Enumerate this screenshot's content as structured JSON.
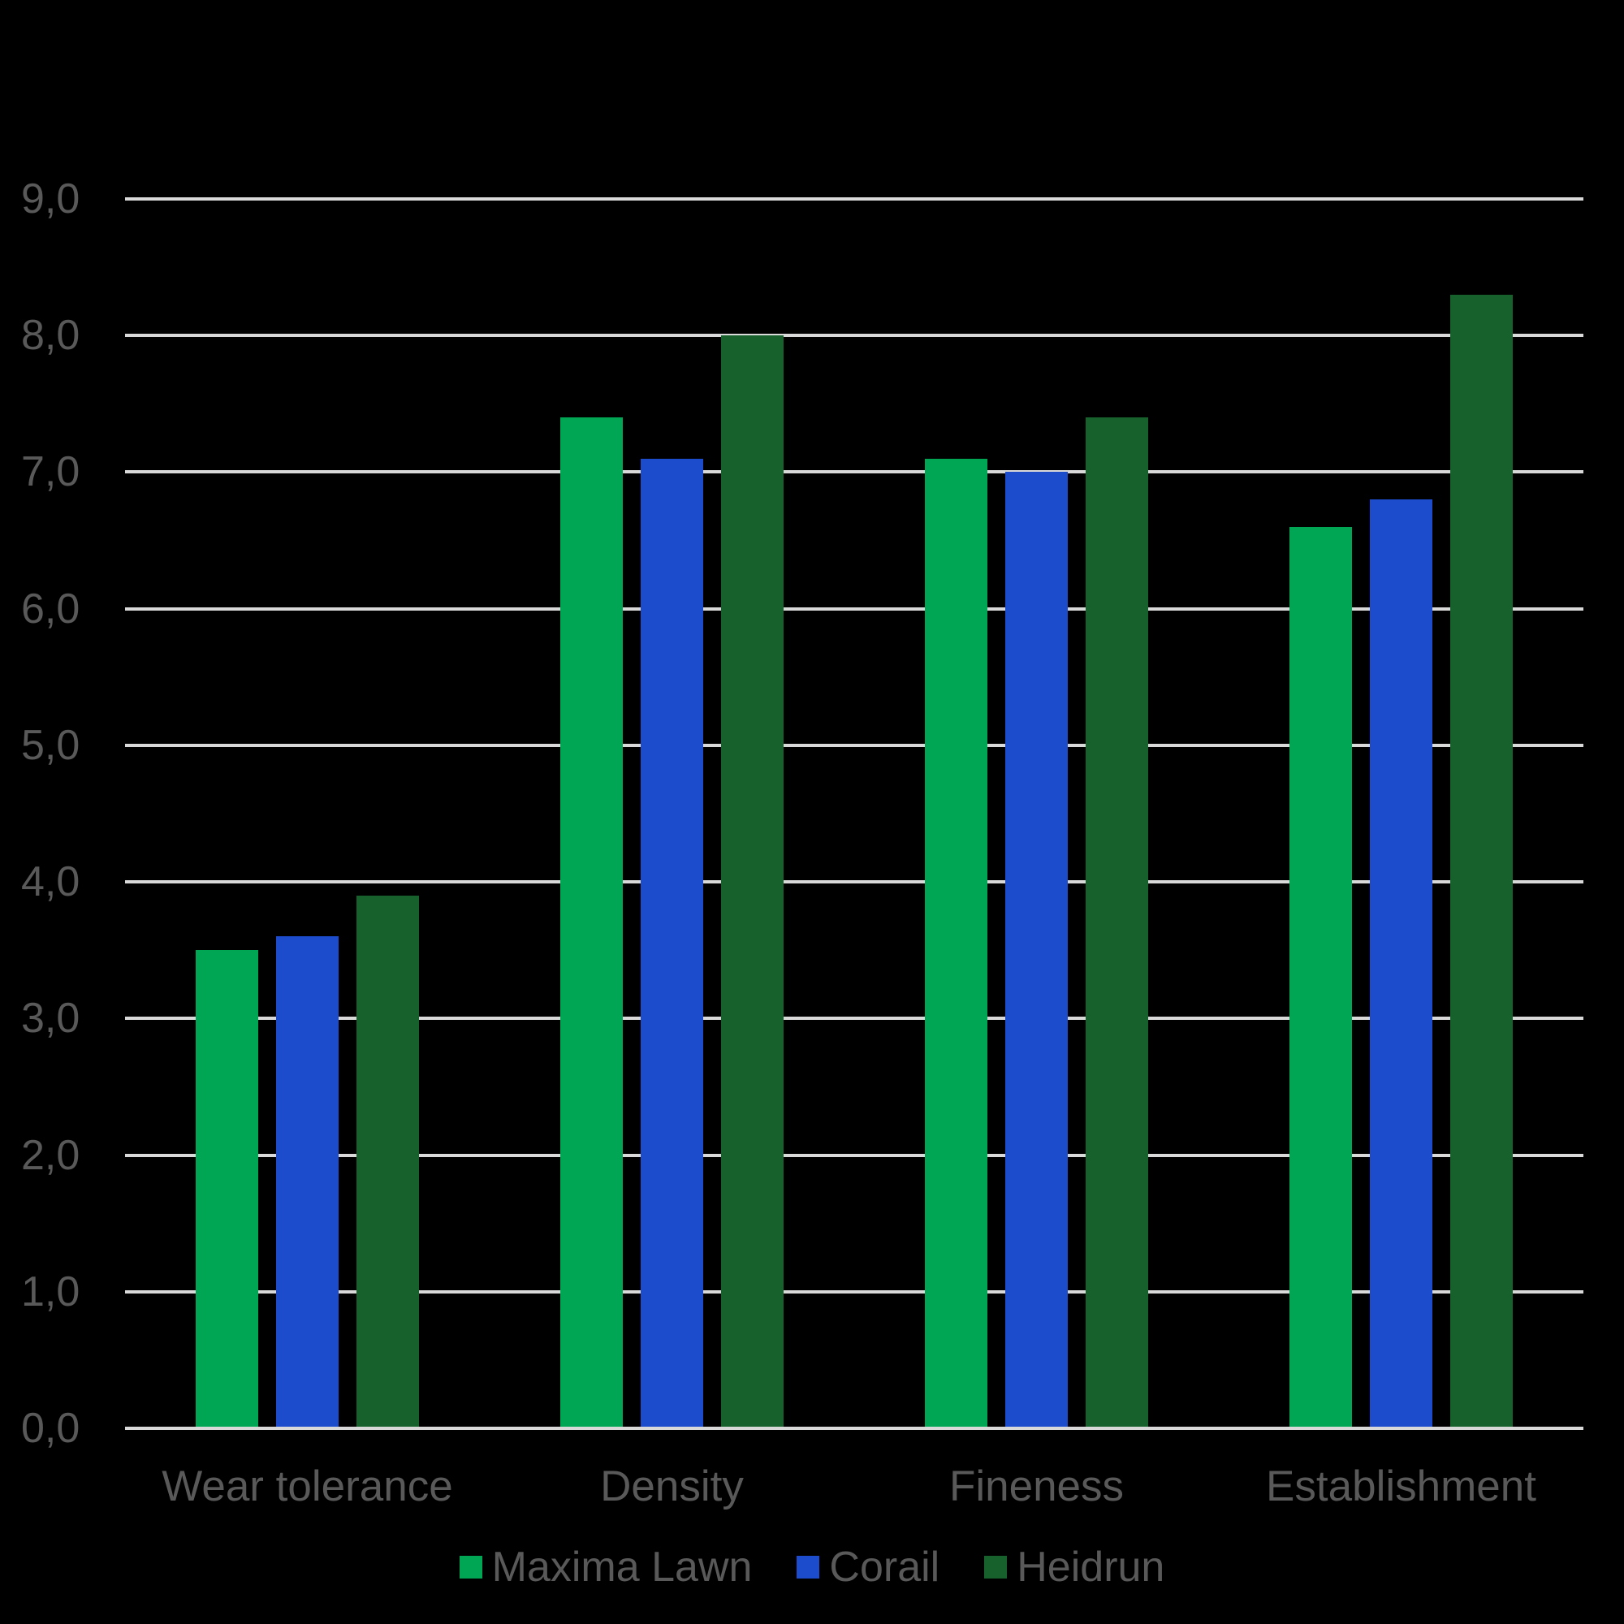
{
  "chart_data": {
    "type": "bar",
    "title": "",
    "categories": [
      "Wear tolerance",
      "Density",
      "Fineness",
      "Establishment"
    ],
    "series": [
      {
        "name": "Maxima Lawn",
        "color": "#00A654",
        "values": [
          3.5,
          7.4,
          7.1,
          6.6
        ]
      },
      {
        "name": "Corail",
        "color": "#1C4CCC",
        "values": [
          3.6,
          7.1,
          7.0,
          6.8
        ]
      },
      {
        "name": "Heidrun",
        "color": "#16612C",
        "values": [
          3.9,
          8.0,
          7.4,
          8.3
        ]
      }
    ],
    "y_axis": {
      "min": 0,
      "max": 9,
      "step": 1,
      "tick_labels": [
        "0,0",
        "1,0",
        "2,0",
        "3,0",
        "4,0",
        "5,0",
        "6,0",
        "7,0",
        "8,0",
        "9,0"
      ]
    },
    "grid": true,
    "legend_position": "bottom",
    "xlabel": "",
    "ylabel": "",
    "colors": {
      "background": "#000000",
      "axis_text": "#595959",
      "gridline": "#D9D9D9"
    }
  }
}
